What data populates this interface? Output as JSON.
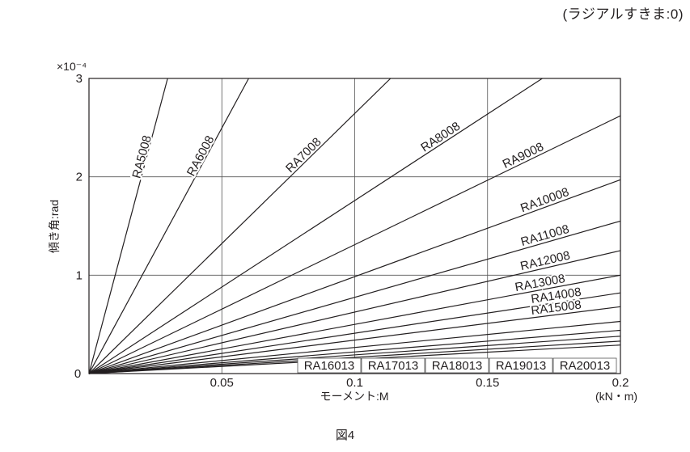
{
  "note": "(ラジアルすきま:0)",
  "figure_caption": "図4",
  "chart_data": {
    "type": "line",
    "title": "",
    "xlabel": "モーメント:M",
    "xunit": "(kN・m)",
    "ylabel": "傾き角:rad",
    "yexponent": "×10⁻⁴",
    "xlim": [
      0,
      0.2
    ],
    "ylim": [
      0,
      3
    ],
    "x_ticks": [
      {
        "v": 0,
        "label": "0"
      },
      {
        "v": 0.05,
        "label": "0.05"
      },
      {
        "v": 0.1,
        "label": "0.1"
      },
      {
        "v": 0.15,
        "label": "0.15"
      },
      {
        "v": 0.2,
        "label": "0.2"
      }
    ],
    "y_ticks": [
      {
        "v": 1,
        "label": "1"
      },
      {
        "v": 2,
        "label": "2"
      },
      {
        "v": 3,
        "label": "3"
      }
    ],
    "grid": true,
    "series": [
      {
        "name": "RA5008",
        "x": [
          0,
          0.0296
        ],
        "y": [
          0,
          3.0
        ]
      },
      {
        "name": "RA6008",
        "x": [
          0,
          0.0601
        ],
        "y": [
          0,
          3.0
        ]
      },
      {
        "name": "RA7008",
        "x": [
          0,
          0.1135
        ],
        "y": [
          0,
          3.0
        ]
      },
      {
        "name": "RA8008",
        "x": [
          0,
          0.1706
        ],
        "y": [
          0,
          3.0
        ]
      },
      {
        "name": "RA9008",
        "x": [
          0,
          0.2
        ],
        "y": [
          0,
          2.62
        ]
      },
      {
        "name": "RA10008",
        "x": [
          0,
          0.2
        ],
        "y": [
          0,
          1.97
        ]
      },
      {
        "name": "RA11008",
        "x": [
          0,
          0.2
        ],
        "y": [
          0,
          1.55
        ]
      },
      {
        "name": "RA12008",
        "x": [
          0,
          0.2
        ],
        "y": [
          0,
          1.25
        ]
      },
      {
        "name": "RA13008",
        "x": [
          0,
          0.2
        ],
        "y": [
          0,
          1.0
        ]
      },
      {
        "name": "RA14008",
        "x": [
          0,
          0.2
        ],
        "y": [
          0,
          0.82
        ]
      },
      {
        "name": "RA15008",
        "x": [
          0,
          0.2
        ],
        "y": [
          0,
          0.68
        ]
      },
      {
        "name": "RA16013",
        "x": [
          0,
          0.2
        ],
        "y": [
          0,
          0.53
        ]
      },
      {
        "name": "RA17013",
        "x": [
          0,
          0.2
        ],
        "y": [
          0,
          0.44
        ]
      },
      {
        "name": "RA18013",
        "x": [
          0,
          0.2
        ],
        "y": [
          0,
          0.38
        ]
      },
      {
        "name": "RA19013",
        "x": [
          0,
          0.2
        ],
        "y": [
          0,
          0.33
        ]
      },
      {
        "name": "RA20013",
        "x": [
          0,
          0.2
        ],
        "y": [
          0,
          0.29
        ]
      }
    ]
  }
}
